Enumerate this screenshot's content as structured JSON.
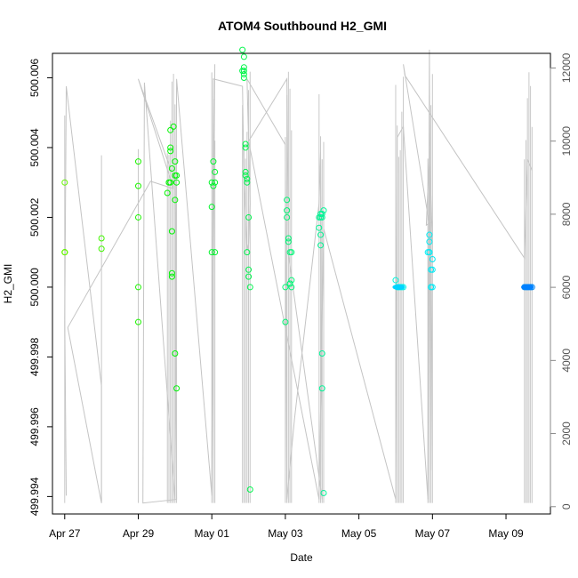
{
  "chart_data": {
    "type": "scatter",
    "title": "ATOM4 Southbound H2_GMI",
    "xlabel": "Date",
    "ylabel": "H2_GMI",
    "x_ticks": [
      "Apr 27",
      "Apr 29",
      "May 01",
      "May 03",
      "May 05",
      "May 07",
      "May 09"
    ],
    "y_ticks": [
      "499.994",
      "499.996",
      "499.998",
      "500.000",
      "500.002",
      "500.004",
      "500.006"
    ],
    "y2_ticks": [
      "0",
      "2000",
      "4000",
      "6000",
      "8000",
      "10000",
      "12000"
    ],
    "xlim": [
      "2016-04-26 16:00",
      "2016-05-10 05:00"
    ],
    "ylim": [
      499.9935,
      500.0067
    ],
    "y2lim": [
      -200,
      12400
    ],
    "grid": false,
    "legend": "none",
    "points_color_by": "time (green to blue)",
    "series": [
      {
        "name": "",
        "kind": "points",
        "x": [
          "2016-04-27 00:00",
          "2016-04-27 00:00",
          "2016-04-27 00:00",
          "2016-04-27 00:00",
          "2016-04-27 00:00",
          "2016-04-28 00:00",
          "2016-04-28 00:00",
          "2016-04-29 00:00",
          "2016-04-29 00:00",
          "2016-04-29 00:00",
          "2016-04-29 00:00",
          "2016-04-29 00:00",
          "2016-04-29 19:00",
          "2016-04-29 20:00",
          "2016-04-29 20:00",
          "2016-04-29 21:00",
          "2016-04-29 21:00",
          "2016-04-29 21:00",
          "2016-04-29 21:00",
          "2016-04-29 22:00",
          "2016-04-29 22:00",
          "2016-04-29 22:00",
          "2016-04-29 22:00",
          "2016-04-29 23:00",
          "2016-04-30 00:00",
          "2016-04-30 00:00",
          "2016-04-30 00:00",
          "2016-04-30 00:00",
          "2016-04-30 01:00",
          "2016-04-30 01:00",
          "2016-04-30 01:00",
          "2016-05-01 00:00",
          "2016-05-01 00:00",
          "2016-05-01 00:00",
          "2016-05-01 01:00",
          "2016-05-01 01:00",
          "2016-05-01 02:00",
          "2016-05-01 02:00",
          "2016-05-01 02:00",
          "2016-05-01 20:00",
          "2016-05-01 20:00",
          "2016-05-01 21:00",
          "2016-05-01 21:00",
          "2016-05-01 21:00",
          "2016-05-01 21:00",
          "2016-05-01 21:00",
          "2016-05-01 22:00",
          "2016-05-01 22:00",
          "2016-05-01 22:00",
          "2016-05-01 22:00",
          "2016-05-01 23:00",
          "2016-05-01 23:00",
          "2016-05-01 23:00",
          "2016-05-02 00:00",
          "2016-05-02 00:00",
          "2016-05-02 00:00",
          "2016-05-02 01:00",
          "2016-05-02 01:00",
          "2016-05-03 00:00",
          "2016-05-03 00:00",
          "2016-05-03 01:00",
          "2016-05-03 01:00",
          "2016-05-03 01:00",
          "2016-05-03 02:00",
          "2016-05-03 02:00",
          "2016-05-03 03:00",
          "2016-05-03 03:00",
          "2016-05-03 03:00",
          "2016-05-03 04:00",
          "2016-05-03 04:00",
          "2016-05-03 04:00",
          "2016-05-03 22:00",
          "2016-05-03 22:00",
          "2016-05-03 23:00",
          "2016-05-03 23:00",
          "2016-05-03 23:00",
          "2016-05-03 23:00",
          "2016-05-04 00:00",
          "2016-05-04 00:00",
          "2016-05-04 00:00",
          "2016-05-04 00:00",
          "2016-05-04 01:00",
          "2016-05-04 01:00",
          "2016-05-06 00:00",
          "2016-05-06 01:00",
          "2016-05-06 02:00",
          "2016-05-06 03:00",
          "2016-05-06 04:00",
          "2016-05-06 05:00",
          "2016-05-06 21:00",
          "2016-05-06 22:00",
          "2016-05-06 22:00",
          "2016-05-06 22:00",
          "2016-05-06 22:00",
          "2016-05-06 23:00",
          "2016-05-06 23:00",
          "2016-05-06 23:00",
          "2016-05-07 00:00",
          "2016-05-07 00:00",
          "2016-05-07 00:00",
          "2016-05-09 12:00",
          "2016-05-09 13:00",
          "2016-05-09 14:00",
          "2016-05-09 15:00",
          "2016-05-09 16:00",
          "2016-05-09 17:00"
        ],
        "y": [
          500.003,
          500.001,
          500.001,
          500.001,
          500.001,
          500.0014,
          500.0011,
          500.0036,
          500.0029,
          500.002,
          500.0,
          499.999,
          500.0027,
          500.003,
          500.003,
          500.003,
          500.0039,
          500.004,
          500.0045,
          500.0016,
          500.0003,
          500.0004,
          500.0034,
          500.0046,
          500.0032,
          500.0036,
          500.0025,
          499.9981,
          500.0032,
          500.003,
          499.9971,
          500.003,
          500.0023,
          500.001,
          500.0036,
          500.0029,
          500.0033,
          500.001,
          500.003,
          500.0068,
          500.0062,
          500.0061,
          500.006,
          500.0062,
          500.0063,
          500.0066,
          500.004,
          500.0041,
          500.0033,
          500.0032,
          500.0031,
          500.003,
          500.001,
          500.002,
          500.0003,
          500.0005,
          500.0,
          499.9942,
          500.0,
          499.999,
          500.0025,
          500.0022,
          500.002,
          500.0014,
          500.0013,
          500.001,
          500.0001,
          500.0001,
          500.0002,
          500.0,
          500.001,
          500.002,
          500.0017,
          500.0015,
          500.0012,
          500.0021,
          500.002,
          500.002,
          500.0021,
          499.9981,
          499.9971,
          499.9941,
          500.0022,
          500.0002,
          500.0,
          500.0,
          500.0,
          500.0,
          500.0,
          500.001,
          500.001,
          500.0015,
          500.0013,
          500.001,
          500.0005,
          500.0,
          500.0,
          500.0,
          500.0005,
          500.0008,
          500.0,
          500.0,
          500.0,
          500.0,
          500.0,
          500.0
        ]
      },
      {
        "name": "",
        "kind": "line",
        "axis": "right",
        "x": [
          "2016-04-27 00:00",
          "2016-04-27 01:00",
          "2016-04-27 00:00",
          "2016-04-27 01:00",
          "2016-04-28 00:00",
          "2016-04-28 00:00",
          "2016-04-27 02:00",
          "2016-04-29 08:00",
          "2016-04-29 23:00",
          "2016-04-29 00:00",
          "2016-04-30 00:00",
          "2016-04-30 01:00",
          "2016-04-29 03:00",
          "2016-04-29 04:00",
          "2016-04-30 00:00",
          "2016-04-30 01:00",
          "2016-05-01 00:00",
          "2016-05-01 02:00",
          "2016-05-01 00:00",
          "2016-05-01 01:00",
          "2016-05-01 20:00",
          "2016-05-01 21:00",
          "2016-05-01 23:00",
          "2016-05-02 00:00",
          "2016-05-02 01:00",
          "2016-05-01 23:00",
          "2016-05-03 00:00",
          "2016-05-03 01:00",
          "2016-05-03 06:00",
          "2016-05-03 22:00",
          "2016-05-03 23:00",
          "2016-05-04 00:00",
          "2016-05-03 02:00",
          "2016-05-03 01:00",
          "2016-05-02 00:00",
          "2016-05-03 22:00",
          "2016-05-04 01:00",
          "2016-05-06 00:00",
          "2016-05-06 01:00",
          "2016-05-06 05:00",
          "2016-05-06 21:00",
          "2016-05-06 22:00",
          "2016-05-06 23:00",
          "2016-05-07 00:00",
          "2016-05-06 20:00",
          "2016-05-06 22:00",
          "2016-05-07 00:00",
          "2016-05-06 05:00",
          "2016-05-06 06:00",
          "2016-05-09 12:00",
          "2016-05-09 14:00",
          "2016-05-09 17:00"
        ],
        "y": [
          5200,
          300,
          5000,
          11500,
          3300,
          100,
          4900,
          8900,
          8700,
          11700,
          8900,
          200,
          100,
          11600,
          200,
          11700,
          300,
          12100,
          600,
          11700,
          11500,
          8900,
          7000,
          7200,
          8300,
          11700,
          9900,
          200,
          2400,
          8300,
          9700,
          200,
          6900,
          11700,
          10000,
          200,
          7600,
          200,
          10100,
          10400,
          200,
          12500,
          1000,
          7800,
          7700,
          9700,
          7200,
          12100,
          11800,
          6800,
          9500,
          9200
        ]
      }
    ]
  }
}
